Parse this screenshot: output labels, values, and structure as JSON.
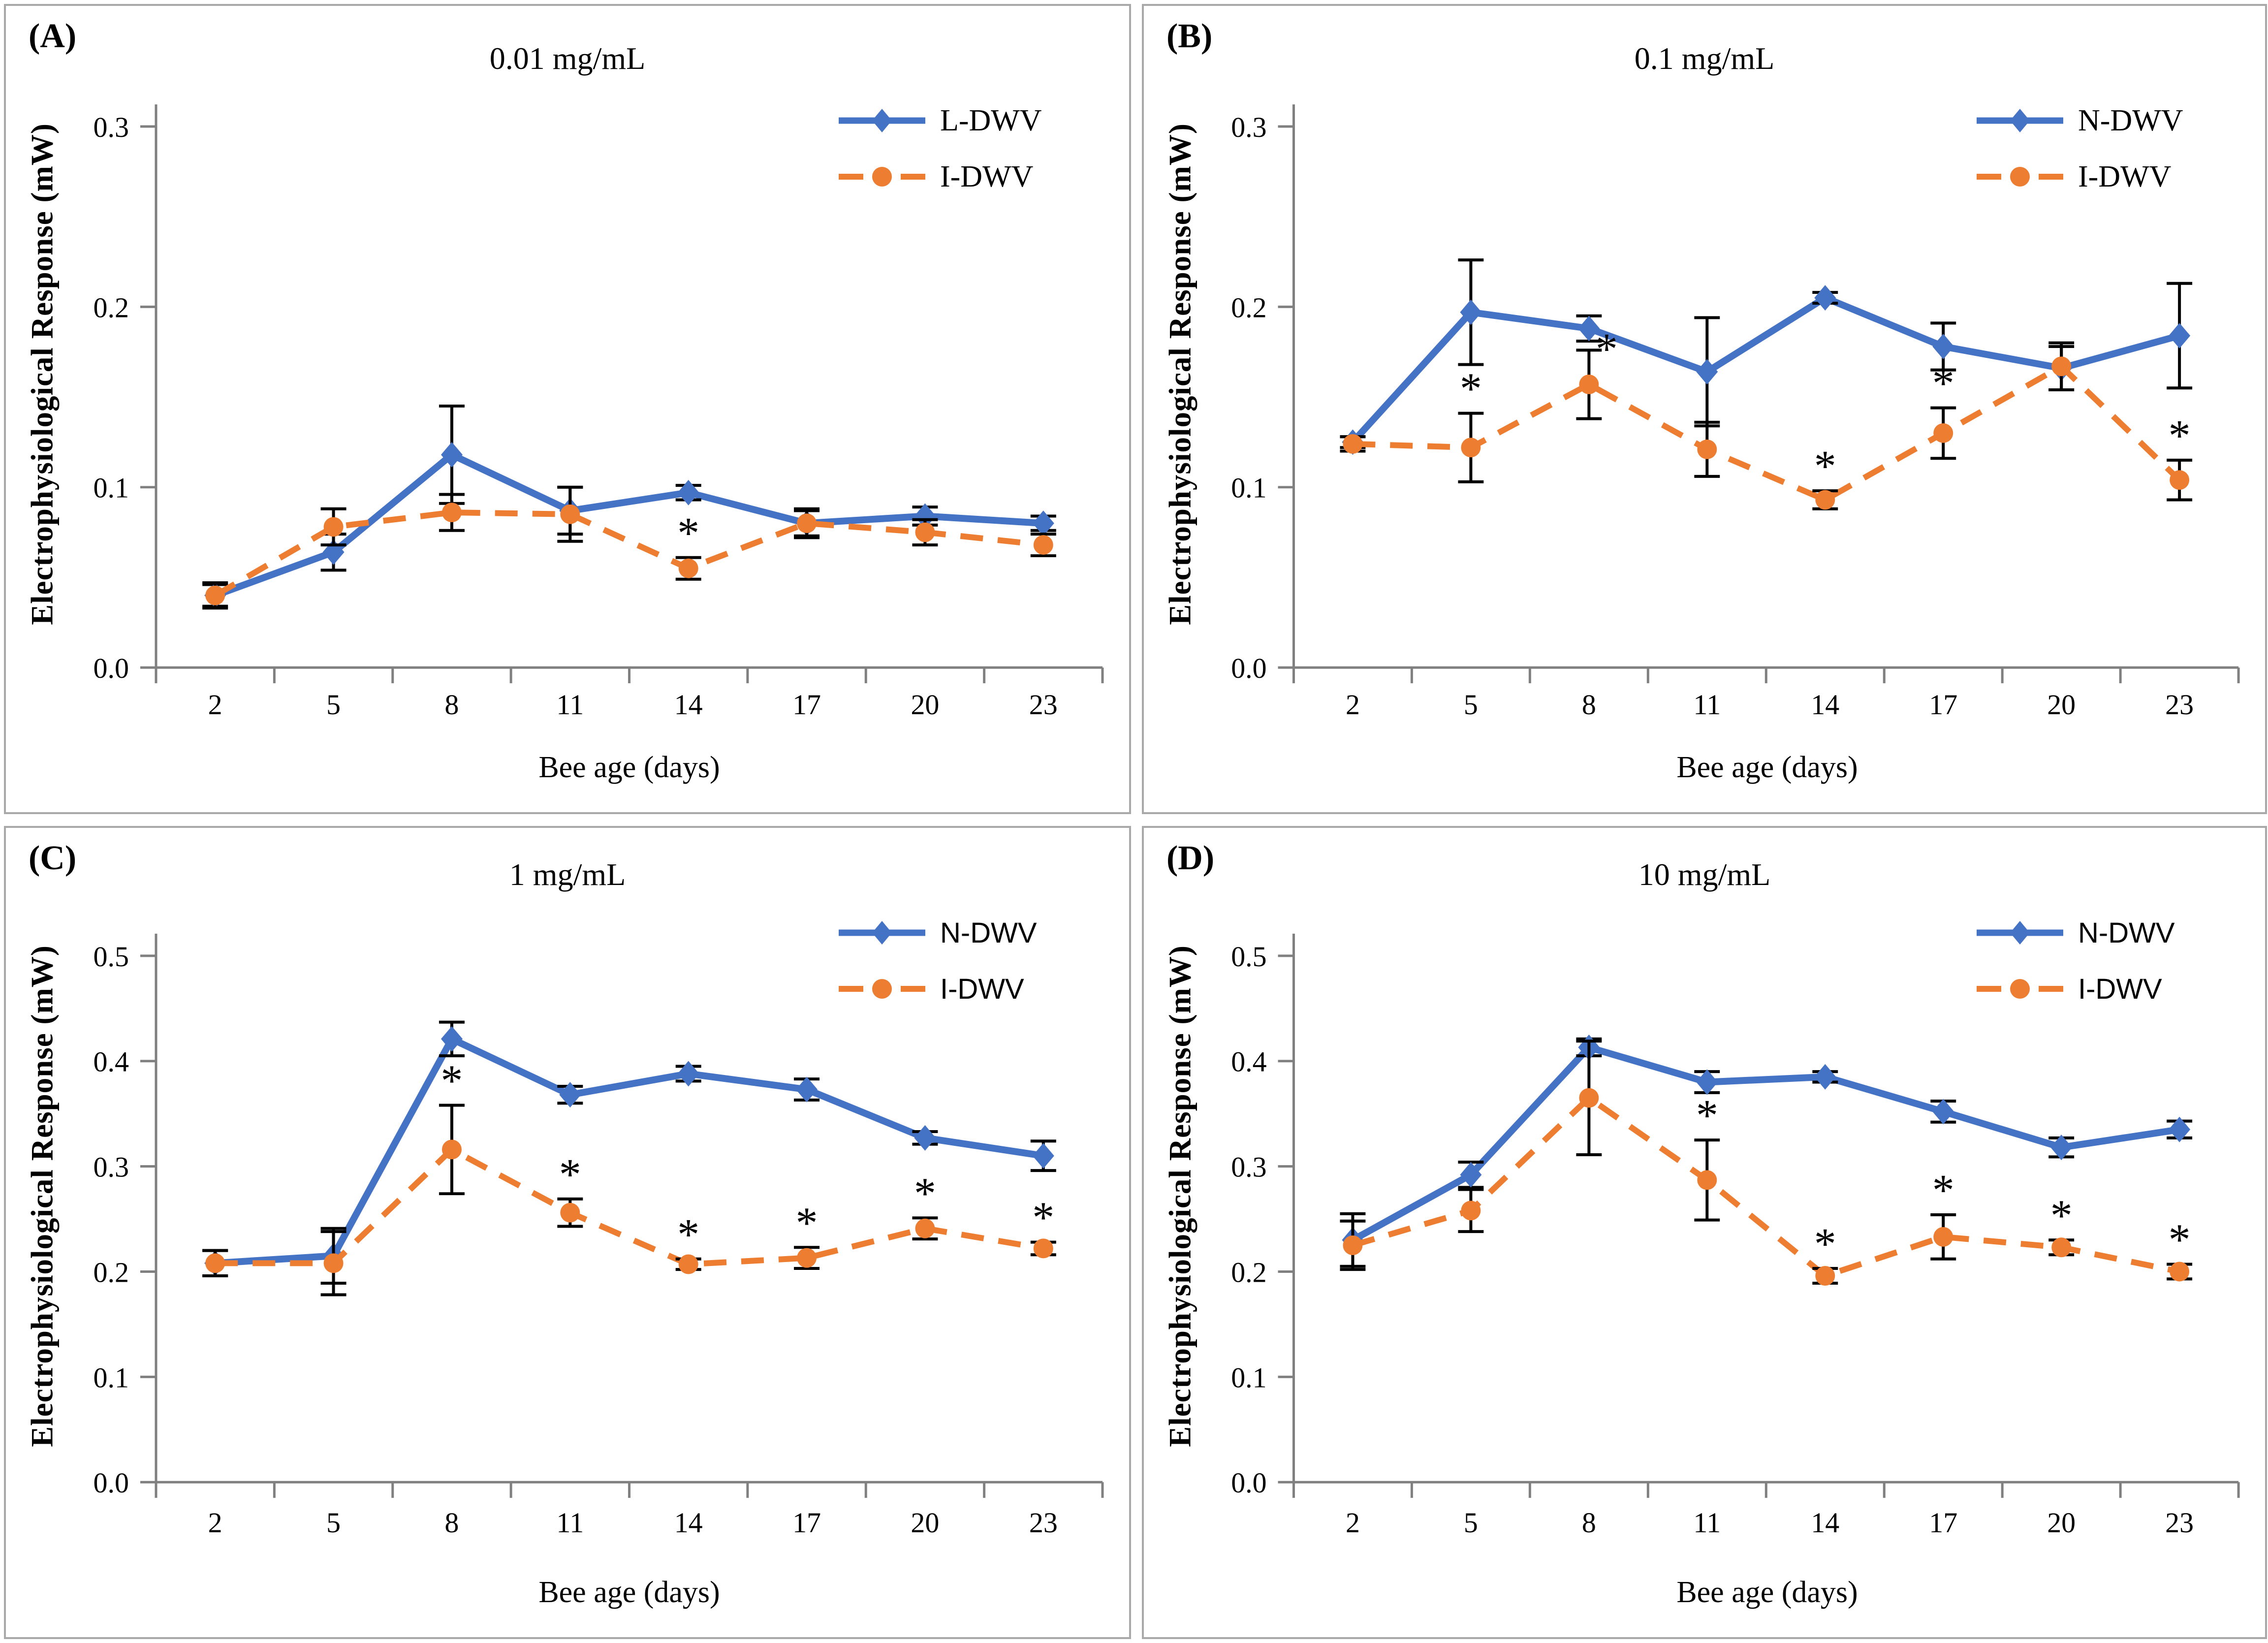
{
  "colors": {
    "blue": "#4472C4",
    "orange": "#ED7D31",
    "axis": "#808080",
    "error_bar": "#000000",
    "text": "#000000",
    "panel_border": "#A9A9A9"
  },
  "figure": {
    "ylabel": "Electrophysiological Response (mW)",
    "xlabel": "Bee age (days)"
  },
  "chart_data": [
    {
      "type": "line",
      "panel_label": "(A)",
      "title": "0.01 mg/mL",
      "xlabel": "Bee age (days)",
      "ylabel": "Electrophysiological Response (mW)",
      "categories": [
        2,
        5,
        8,
        11,
        14,
        17,
        20,
        23
      ],
      "y_ticks": [
        "0.0",
        "0.1",
        "0.2",
        "0.3"
      ],
      "ylim": [
        0,
        0.3
      ],
      "grid": false,
      "legend_position": "top-right",
      "series": [
        {
          "name": "L-DWV",
          "color_key": "blue",
          "line": "solid",
          "marker": "diamond",
          "values": [
            0.04,
            0.064,
            0.118,
            0.087,
            0.097,
            0.08,
            0.084,
            0.08
          ],
          "errors": [
            0.006,
            0.01,
            0.027,
            0.013,
            0.004,
            0.008,
            0.005,
            0.004
          ],
          "stars": []
        },
        {
          "name": "I-DWV",
          "color_key": "orange",
          "line": "dashed",
          "marker": "circle",
          "values": [
            0.04,
            0.078,
            0.086,
            0.085,
            0.055,
            0.08,
            0.075,
            0.068
          ],
          "errors": [
            0.007,
            0.01,
            0.01,
            0.015,
            0.006,
            0.007,
            0.007,
            0.006
          ],
          "stars": [
            {
              "day": 14
            }
          ]
        }
      ]
    },
    {
      "type": "line",
      "panel_label": "(B)",
      "title": "0.1 mg/mL",
      "xlabel": "Bee age (days)",
      "ylabel": "Electrophysiological Response (mW)",
      "categories": [
        2,
        5,
        8,
        11,
        14,
        17,
        20,
        23
      ],
      "y_ticks": [
        "0.0",
        "0.1",
        "0.2",
        "0.3"
      ],
      "ylim": [
        0,
        0.3
      ],
      "grid": false,
      "legend_position": "top-right",
      "series": [
        {
          "name": "N-DWV",
          "color_key": "blue",
          "line": "solid",
          "marker": "diamond",
          "values": [
            0.125,
            0.197,
            0.188,
            0.164,
            0.205,
            0.178,
            0.166,
            0.184
          ],
          "errors": [
            0.003,
            0.029,
            0.007,
            0.03,
            0.003,
            0.013,
            0.012,
            0.029
          ],
          "stars": []
        },
        {
          "name": "I-DWV",
          "color_key": "orange",
          "line": "dashed",
          "marker": "circle",
          "values": [
            0.124,
            0.122,
            0.157,
            0.121,
            0.093,
            0.13,
            0.167,
            0.104
          ],
          "errors": [
            0.004,
            0.019,
            0.019,
            0.015,
            0.005,
            0.014,
            0.013,
            0.011
          ],
          "stars": [
            {
              "day": 5
            },
            {
              "day": 8,
              "dx": 36,
              "dy": 48
            },
            {
              "day": 14
            },
            {
              "day": 17
            },
            {
              "day": 23
            }
          ]
        }
      ]
    },
    {
      "type": "line",
      "panel_label": "(C)",
      "title": "1 mg/mL",
      "xlabel": "Bee age (days)",
      "ylabel": "Electrophysiological Response (mW)",
      "categories": [
        2,
        5,
        8,
        11,
        14,
        17,
        20,
        23
      ],
      "y_ticks": [
        "0.0",
        "0.1",
        "0.2",
        "0.3",
        "0.4",
        "0.5"
      ],
      "ylim": [
        0,
        0.5
      ],
      "grid": false,
      "legend_position": "top-right",
      "series": [
        {
          "name": "N-DWV",
          "color_key": "blue",
          "line": "solid",
          "marker": "diamond",
          "values": [
            0.208,
            0.215,
            0.421,
            0.368,
            0.388,
            0.373,
            0.327,
            0.31
          ],
          "errors": [
            0.012,
            0.026,
            0.016,
            0.008,
            0.007,
            0.01,
            0.006,
            0.014
          ],
          "stars": []
        },
        {
          "name": "I-DWV",
          "color_key": "orange",
          "line": "dashed",
          "marker": "circle",
          "values": [
            0.208,
            0.208,
            0.316,
            0.256,
            0.207,
            0.213,
            0.241,
            0.222
          ],
          "errors": [
            0.012,
            0.03,
            0.042,
            0.013,
            0.005,
            0.01,
            0.01,
            0.006
          ],
          "stars": [
            {
              "day": 8
            },
            {
              "day": 11
            },
            {
              "day": 14
            },
            {
              "day": 17
            },
            {
              "day": 20
            },
            {
              "day": 23
            }
          ]
        }
      ]
    },
    {
      "type": "line",
      "panel_label": "(D)",
      "title": "10 mg/mL",
      "xlabel": "Bee age (days)",
      "ylabel": "Electrophysiological Response (mW)",
      "categories": [
        2,
        5,
        8,
        11,
        14,
        17,
        20,
        23
      ],
      "y_ticks": [
        "0.0",
        "0.1",
        "0.2",
        "0.3",
        "0.4",
        "0.5"
      ],
      "ylim": [
        0,
        0.5
      ],
      "grid": false,
      "legend_position": "top-right",
      "series": [
        {
          "name": "N-DWV",
          "color_key": "blue",
          "line": "solid",
          "marker": "diamond",
          "values": [
            0.23,
            0.292,
            0.413,
            0.38,
            0.385,
            0.352,
            0.318,
            0.335
          ],
          "errors": [
            0.025,
            0.012,
            0.008,
            0.01,
            0.005,
            0.01,
            0.009,
            0.008
          ],
          "stars": []
        },
        {
          "name": "I-DWV",
          "color_key": "orange",
          "line": "dashed",
          "marker": "circle",
          "values": [
            0.225,
            0.258,
            0.365,
            0.287,
            0.196,
            0.233,
            0.223,
            0.2
          ],
          "errors": [
            0.023,
            0.02,
            0.054,
            0.038,
            0.007,
            0.021,
            0.007,
            0.007
          ],
          "stars": [
            {
              "day": 11
            },
            {
              "day": 14
            },
            {
              "day": 17
            },
            {
              "day": 20
            },
            {
              "day": 23
            }
          ]
        }
      ]
    }
  ]
}
